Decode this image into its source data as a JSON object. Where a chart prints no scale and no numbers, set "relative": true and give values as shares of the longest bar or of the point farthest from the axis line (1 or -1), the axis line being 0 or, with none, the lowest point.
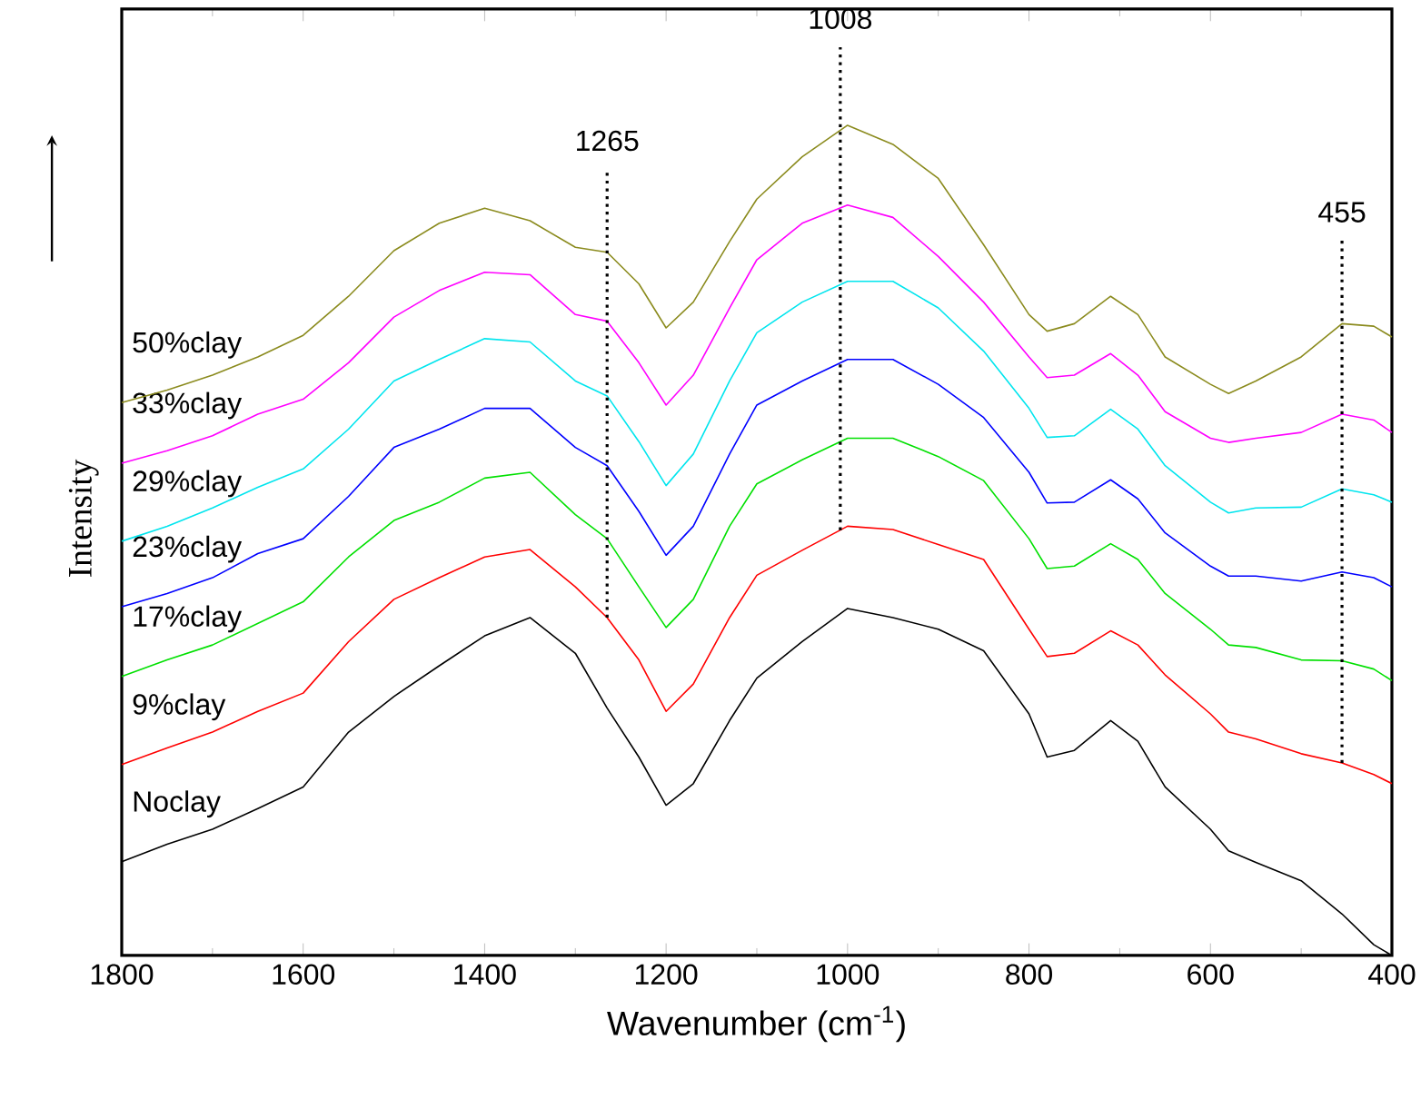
{
  "chart_data": {
    "type": "line",
    "relative": true,
    "xlabel": "Wavenumber (cm$^{-1}$)",
    "ylabel": "Intensity",
    "x": [
      1800,
      1750,
      1700,
      1650,
      1600,
      1550,
      1500,
      1450,
      1400,
      1350,
      1300,
      1265,
      1230,
      1200,
      1170,
      1130,
      1100,
      1050,
      1000,
      950,
      900,
      850,
      800,
      780,
      750,
      710,
      680,
      650,
      600,
      580,
      550,
      500,
      455,
      420,
      400
    ],
    "xlim": [
      1800,
      400
    ],
    "xticks": [
      1800,
      1600,
      1400,
      1200,
      1000,
      800,
      600,
      400
    ],
    "legend": false,
    "grid": false,
    "series": [
      {
        "name": "Noclay",
        "color": "#000000",
        "values": [
          0.113,
          0.134,
          0.152,
          0.177,
          0.203,
          0.269,
          0.312,
          0.349,
          0.385,
          0.407,
          0.364,
          0.298,
          0.239,
          0.181,
          0.207,
          0.283,
          0.334,
          0.378,
          0.418,
          0.407,
          0.393,
          0.367,
          0.291,
          0.239,
          0.247,
          0.283,
          0.258,
          0.203,
          0.152,
          0.126,
          0.112,
          0.09,
          0.05,
          0.013,
          0
        ]
      },
      {
        "name": "9%clay",
        "color": "#ff0000",
        "values": [
          0.23,
          0.25,
          0.269,
          0.294,
          0.316,
          0.378,
          0.429,
          0.455,
          0.48,
          0.489,
          0.444,
          0.407,
          0.356,
          0.294,
          0.327,
          0.407,
          0.458,
          0.488,
          0.517,
          0.513,
          0.495,
          0.477,
          0.393,
          0.36,
          0.364,
          0.391,
          0.374,
          0.338,
          0.291,
          0.269,
          0.261,
          0.243,
          0.232,
          0.218,
          0.207
        ]
      },
      {
        "name": "17%clay",
        "color": "#00e000",
        "values": [
          0.336,
          0.356,
          0.374,
          0.4,
          0.426,
          0.48,
          0.524,
          0.546,
          0.575,
          0.582,
          0.531,
          0.502,
          0.444,
          0.395,
          0.429,
          0.517,
          0.568,
          0.597,
          0.623,
          0.623,
          0.601,
          0.572,
          0.502,
          0.466,
          0.469,
          0.496,
          0.477,
          0.436,
          0.393,
          0.374,
          0.371,
          0.356,
          0.355,
          0.345,
          0.331
        ]
      },
      {
        "name": "23%clay",
        "color": "#0000ff",
        "values": [
          0.42,
          0.436,
          0.455,
          0.484,
          0.502,
          0.553,
          0.612,
          0.634,
          0.659,
          0.659,
          0.612,
          0.59,
          0.535,
          0.482,
          0.517,
          0.604,
          0.663,
          0.692,
          0.718,
          0.718,
          0.688,
          0.648,
          0.582,
          0.545,
          0.546,
          0.573,
          0.55,
          0.509,
          0.469,
          0.457,
          0.457,
          0.451,
          0.462,
          0.455,
          0.444
        ]
      },
      {
        "name": "29%clay",
        "color": "#00e5ee",
        "values": [
          0.499,
          0.517,
          0.539,
          0.564,
          0.586,
          0.634,
          0.692,
          0.718,
          0.743,
          0.739,
          0.692,
          0.674,
          0.619,
          0.566,
          0.604,
          0.692,
          0.75,
          0.787,
          0.812,
          0.812,
          0.78,
          0.728,
          0.659,
          0.624,
          0.626,
          0.658,
          0.634,
          0.59,
          0.546,
          0.533,
          0.539,
          0.54,
          0.562,
          0.555,
          0.546
        ]
      },
      {
        "name": "33%clay",
        "color": "#ff00ff",
        "values": [
          0.593,
          0.608,
          0.626,
          0.652,
          0.67,
          0.714,
          0.769,
          0.801,
          0.823,
          0.82,
          0.772,
          0.764,
          0.714,
          0.663,
          0.699,
          0.78,
          0.838,
          0.882,
          0.904,
          0.889,
          0.842,
          0.787,
          0.721,
          0.696,
          0.699,
          0.725,
          0.699,
          0.655,
          0.623,
          0.618,
          0.623,
          0.63,
          0.652,
          0.645,
          0.63
        ]
      },
      {
        "name": "50%clay",
        "color": "#8b8b1e",
        "values": [
          0.666,
          0.681,
          0.699,
          0.721,
          0.747,
          0.794,
          0.849,
          0.882,
          0.9,
          0.885,
          0.853,
          0.847,
          0.809,
          0.756,
          0.787,
          0.86,
          0.911,
          0.962,
          1.0,
          0.977,
          0.936,
          0.856,
          0.772,
          0.752,
          0.761,
          0.794,
          0.772,
          0.721,
          0.688,
          0.677,
          0.692,
          0.721,
          0.761,
          0.758,
          0.745
        ]
      }
    ],
    "ref_lines": [
      {
        "axis": "x",
        "value": 1265,
        "label": "1265",
        "color": "#000000",
        "line_style": "dotted"
      },
      {
        "axis": "x",
        "value": 1008,
        "label": "1008",
        "color": "#000000",
        "line_style": "dotted"
      },
      {
        "axis": "x",
        "value": 455,
        "label": "455",
        "color": "#000000",
        "line_style": "dotted"
      }
    ]
  }
}
